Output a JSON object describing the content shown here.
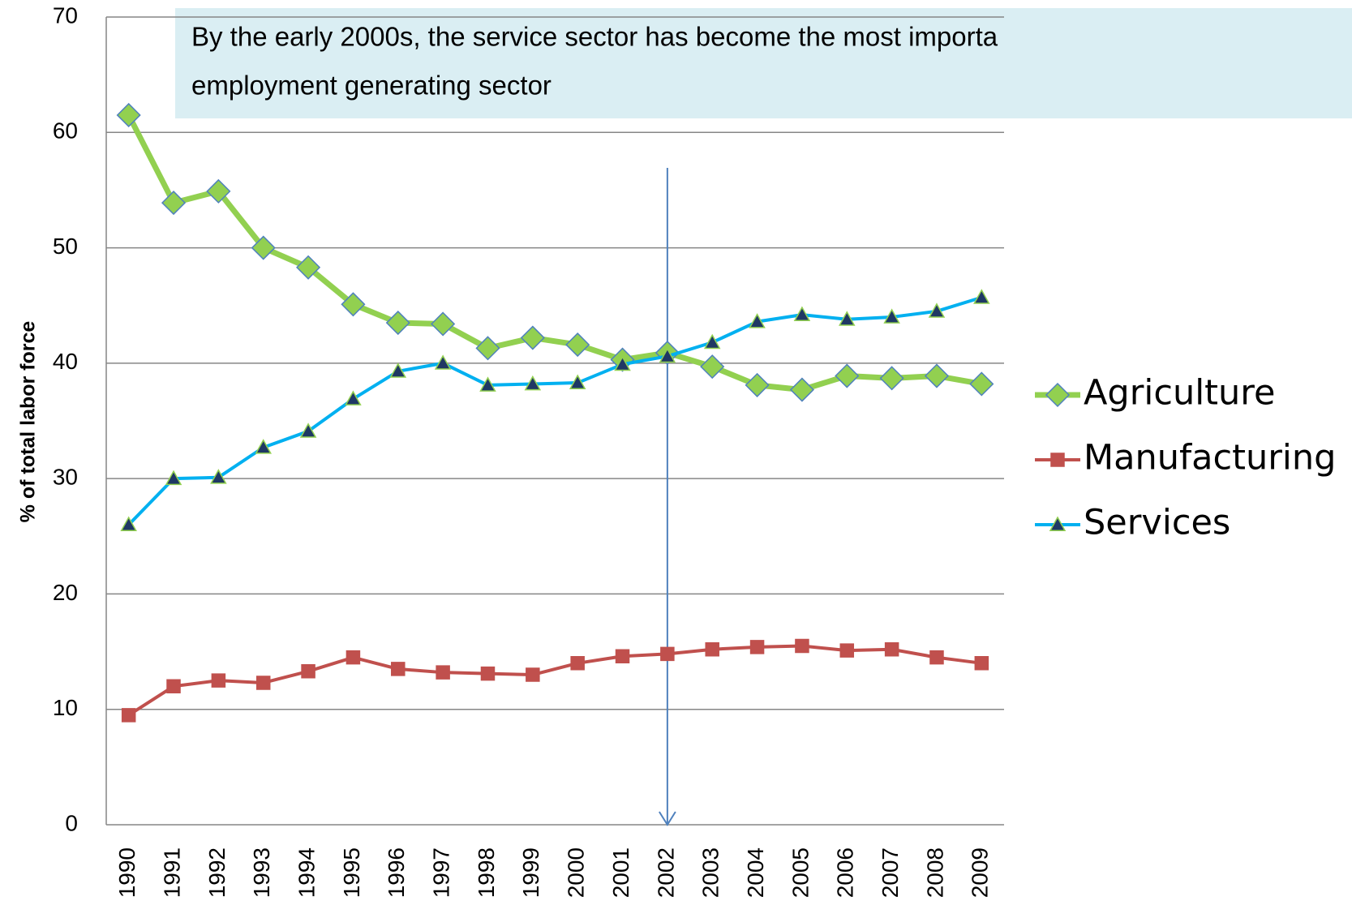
{
  "chart_data": {
    "type": "line",
    "annotation": [
      "By the early 2000s, the service sector has become the most importa",
      "employment generating sector"
    ],
    "y_label": "% of total labor force",
    "categories": [
      "1990",
      "1991",
      "1992",
      "1993",
      "1994",
      "1995",
      "1996",
      "1997",
      "1998",
      "1999",
      "2000",
      "2001",
      "2002",
      "2003",
      "2004",
      "2005",
      "2006",
      "2007",
      "2008",
      "2009"
    ],
    "series": [
      {
        "name": "Agriculture",
        "color": "#92d050",
        "marker": "diamond",
        "values": [
          61.5,
          53.9,
          54.9,
          50.0,
          48.3,
          45.1,
          43.5,
          43.4,
          41.3,
          42.2,
          41.6,
          40.3,
          40.9,
          39.7,
          38.1,
          37.7,
          38.9,
          38.7,
          38.9,
          38.2
        ]
      },
      {
        "name": "Manufacturing",
        "color": "#c0504d",
        "marker": "square",
        "values": [
          9.5,
          12.0,
          12.5,
          12.3,
          13.3,
          14.5,
          13.5,
          13.2,
          13.1,
          13.0,
          14.0,
          14.6,
          14.8,
          15.2,
          15.4,
          15.5,
          15.1,
          15.2,
          14.5,
          14.0
        ]
      },
      {
        "name": "Services",
        "color": "#00b0f0",
        "marker": "triangle",
        "values": [
          26.0,
          30.0,
          30.1,
          32.7,
          34.1,
          36.9,
          39.3,
          40.0,
          38.1,
          38.2,
          38.3,
          39.9,
          40.6,
          41.8,
          43.6,
          44.2,
          43.8,
          44.0,
          44.5,
          45.7
        ]
      }
    ],
    "ylim": [
      0,
      70
    ],
    "yticks": [
      0,
      10,
      20,
      30,
      40,
      50,
      60,
      70
    ],
    "grid": true
  }
}
